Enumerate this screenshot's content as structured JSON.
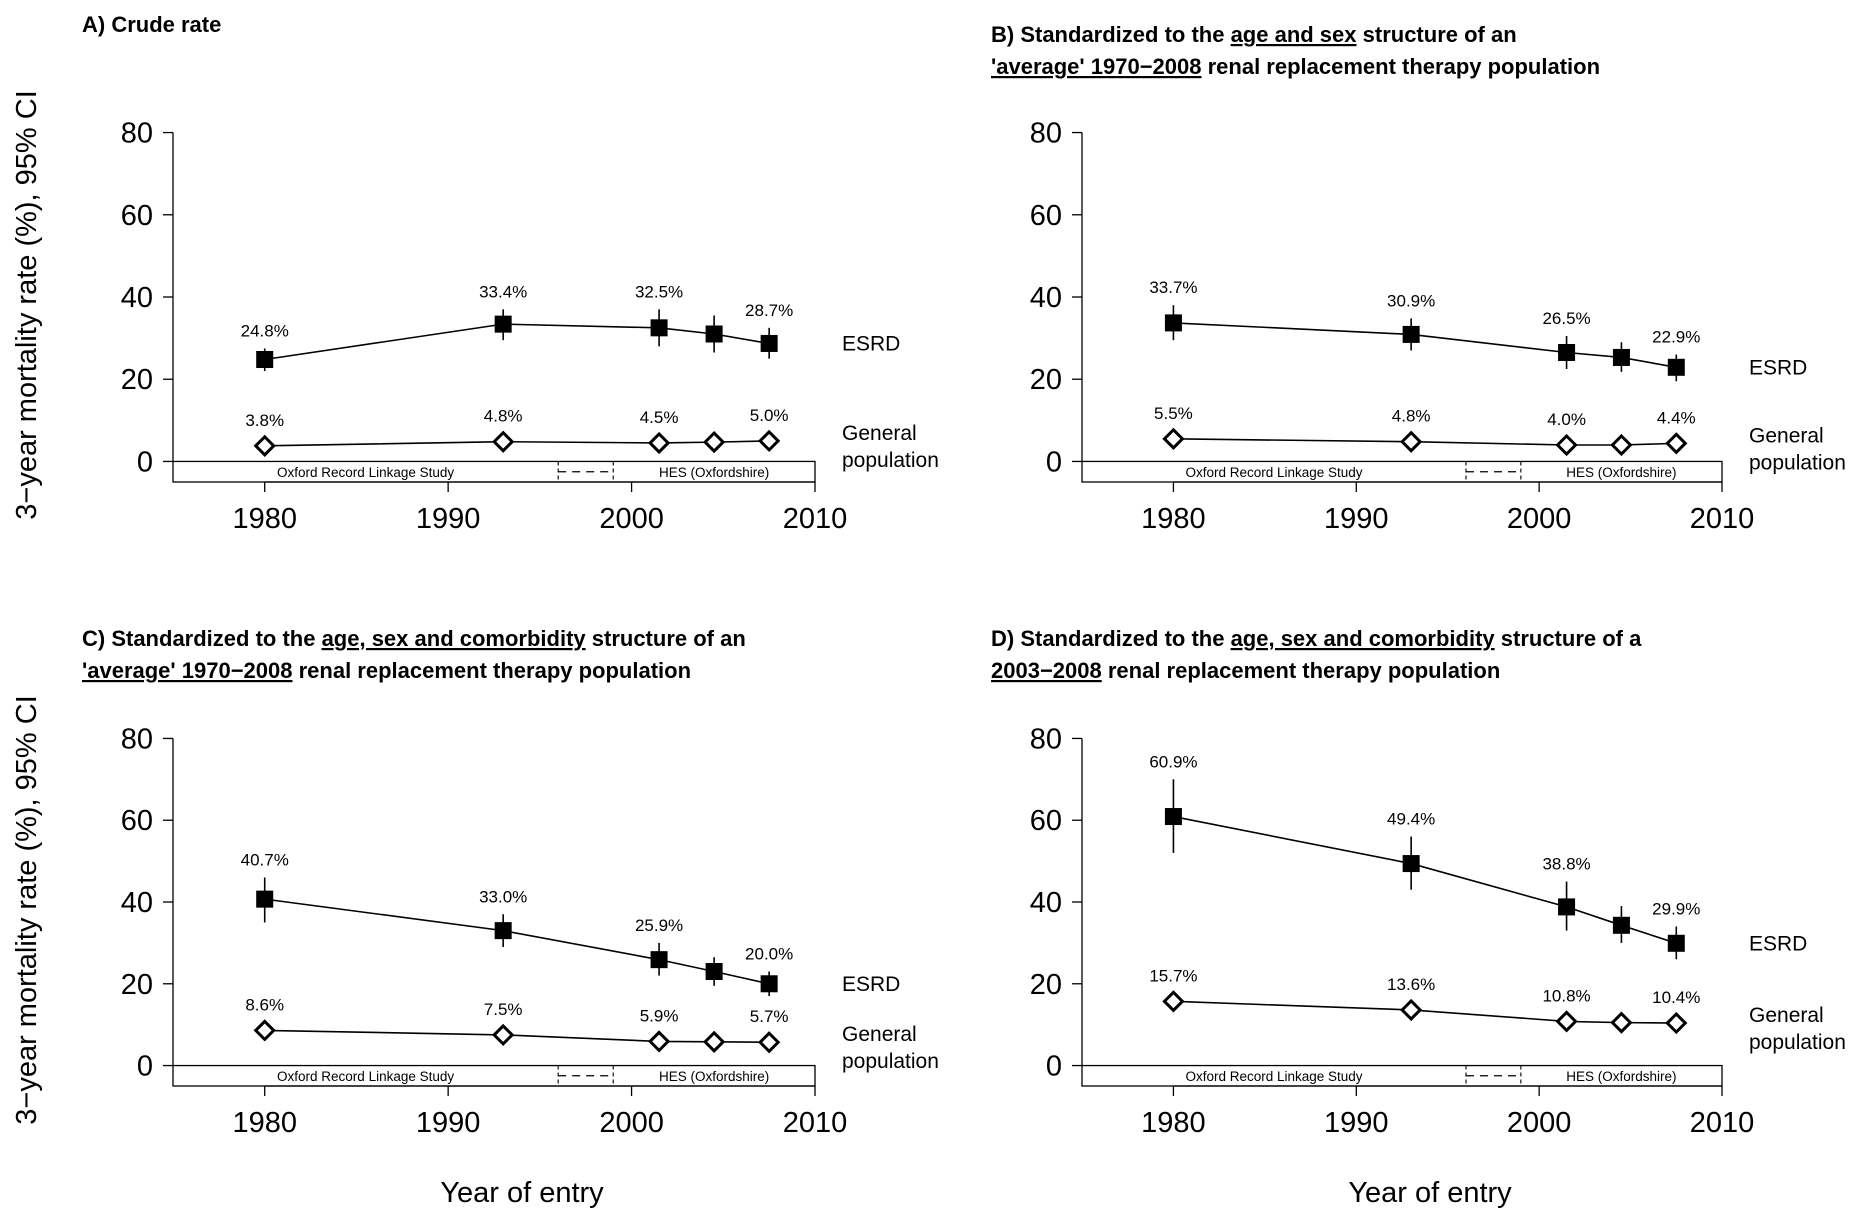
{
  "chart_data": [
    {
      "type": "line",
      "title": "A) Crude rate",
      "title_lines": [
        [
          {
            "t": "A) Crude rate",
            "u": false
          }
        ]
      ],
      "ylabel": "3−year mortality rate (%), 95% CI",
      "xlabel": "",
      "x_ticks": [
        "1980",
        "1990",
        "2000",
        "2010"
      ],
      "y_ticks": [
        "0",
        "20",
        "40",
        "60",
        "80"
      ],
      "xlim": [
        1975,
        2010
      ],
      "ylim": [
        -5,
        85
      ],
      "series": [
        {
          "name": "ESRD",
          "marker": "square",
          "x": [
            1980,
            1993,
            2001.5,
            2004.5,
            2007.5
          ],
          "y": [
            24.8,
            33.4,
            32.5,
            31.0,
            28.7
          ],
          "lo": [
            22.0,
            29.5,
            28.0,
            26.5,
            25.0
          ],
          "hi": [
            27.5,
            37.0,
            37.0,
            35.5,
            32.5
          ],
          "labels": [
            "24.8%",
            "33.4%",
            "32.5%",
            "",
            "28.7%"
          ]
        },
        {
          "name": "General population",
          "marker": "diamond",
          "x": [
            1980,
            1993,
            2001.5,
            2004.5,
            2007.5
          ],
          "y": [
            3.8,
            4.8,
            4.5,
            4.7,
            5.0
          ],
          "lo": [
            3.0,
            4.0,
            3.7,
            3.9,
            4.2
          ],
          "hi": [
            4.6,
            5.6,
            5.3,
            5.5,
            5.8
          ],
          "labels": [
            "3.8%",
            "4.8%",
            "4.5%",
            "",
            "5.0%"
          ]
        }
      ],
      "source_bands": [
        "Oxford Record Linkage Study",
        "HES (Oxfordshire)"
      ]
    },
    {
      "type": "line",
      "title": "B) Standardized to the age and sex structure of an 'average' 1970−2008 renal replacement therapy population",
      "title_lines": [
        [
          {
            "t": "B) Standardized to the ",
            "u": false
          },
          {
            "t": "age and sex",
            "u": true
          },
          {
            "t": " structure of an",
            "u": false
          }
        ],
        [
          {
            "t": "'average' 1970−2008",
            "u": true
          },
          {
            "t": " renal replacement therapy population",
            "u": false
          }
        ]
      ],
      "ylabel": "",
      "xlabel": "",
      "x_ticks": [
        "1980",
        "1990",
        "2000",
        "2010"
      ],
      "y_ticks": [
        "0",
        "20",
        "40",
        "60",
        "80"
      ],
      "xlim": [
        1975,
        2010
      ],
      "ylim": [
        -5,
        85
      ],
      "series": [
        {
          "name": "ESRD",
          "marker": "square",
          "x": [
            1980,
            1993,
            2001.5,
            2004.5,
            2007.5
          ],
          "y": [
            33.7,
            30.9,
            26.5,
            25.3,
            22.9
          ],
          "lo": [
            29.5,
            27.0,
            22.5,
            21.8,
            19.5
          ],
          "hi": [
            38.0,
            34.8,
            30.5,
            29.0,
            26.0
          ],
          "labels": [
            "33.7%",
            "30.9%",
            "26.5%",
            "",
            "22.9%"
          ]
        },
        {
          "name": "General population",
          "marker": "diamond",
          "x": [
            1980,
            1993,
            2001.5,
            2004.5,
            2007.5
          ],
          "y": [
            5.5,
            4.8,
            4.0,
            4.0,
            4.4
          ],
          "lo": [
            4.7,
            4.0,
            3.2,
            3.2,
            3.6
          ],
          "hi": [
            6.3,
            5.6,
            4.8,
            4.8,
            5.2
          ],
          "labels": [
            "5.5%",
            "4.8%",
            "4.0%",
            "",
            "4.4%"
          ]
        }
      ],
      "source_bands": [
        "Oxford Record Linkage Study",
        "HES (Oxfordshire)"
      ]
    },
    {
      "type": "line",
      "title": "C) Standardized to the age, sex and comorbidity structure of an 'average' 1970−2008 renal replacement therapy population",
      "title_lines": [
        [
          {
            "t": "C) Standardized to the ",
            "u": false
          },
          {
            "t": "age, sex and comorbidity",
            "u": true
          },
          {
            "t": " structure of an",
            "u": false
          }
        ],
        [
          {
            "t": "'average' 1970−2008",
            "u": true
          },
          {
            "t": " renal replacement therapy population",
            "u": false
          }
        ]
      ],
      "ylabel": "3−year mortality rate (%), 95% CI",
      "xlabel": "Year of entry",
      "x_ticks": [
        "1980",
        "1990",
        "2000",
        "2010"
      ],
      "y_ticks": [
        "0",
        "20",
        "40",
        "60",
        "80"
      ],
      "xlim": [
        1975,
        2010
      ],
      "ylim": [
        -5,
        85
      ],
      "series": [
        {
          "name": "ESRD",
          "marker": "square",
          "x": [
            1980,
            1993,
            2001.5,
            2004.5,
            2007.5
          ],
          "y": [
            40.7,
            33.0,
            25.9,
            23.0,
            20.0
          ],
          "lo": [
            35.0,
            29.0,
            22.0,
            19.5,
            17.0
          ],
          "hi": [
            46.0,
            37.0,
            30.0,
            26.5,
            23.0
          ],
          "labels": [
            "40.7%",
            "33.0%",
            "25.9%",
            "",
            "20.0%"
          ]
        },
        {
          "name": "General population",
          "marker": "diamond",
          "x": [
            1980,
            1993,
            2001.5,
            2004.5,
            2007.5
          ],
          "y": [
            8.6,
            7.5,
            5.9,
            5.8,
            5.7
          ],
          "lo": [
            7.8,
            6.7,
            5.1,
            5.0,
            4.9
          ],
          "hi": [
            9.4,
            8.3,
            6.7,
            6.6,
            6.5
          ],
          "labels": [
            "8.6%",
            "7.5%",
            "5.9%",
            "",
            "5.7%"
          ]
        }
      ],
      "source_bands": [
        "Oxford Record Linkage Study",
        "HES (Oxfordshire)"
      ]
    },
    {
      "type": "line",
      "title": "D) Standardized to the age, sex and comorbidity structure of a 2003−2008 renal replacement therapy population",
      "title_lines": [
        [
          {
            "t": "D) Standardized to the ",
            "u": false
          },
          {
            "t": "age, sex and comorbidity",
            "u": true
          },
          {
            "t": " structure of a",
            "u": false
          }
        ],
        [
          {
            "t": "2003−2008",
            "u": true
          },
          {
            "t": " renal replacement therapy population",
            "u": false
          }
        ]
      ],
      "ylabel": "",
      "xlabel": "Year of entry",
      "x_ticks": [
        "1980",
        "1990",
        "2000",
        "2010"
      ],
      "y_ticks": [
        "0",
        "20",
        "40",
        "60",
        "80"
      ],
      "xlim": [
        1975,
        2010
      ],
      "ylim": [
        -5,
        85
      ],
      "series": [
        {
          "name": "ESRD",
          "marker": "square",
          "x": [
            1980,
            1993,
            2001.5,
            2004.5,
            2007.5
          ],
          "y": [
            60.9,
            49.4,
            38.8,
            34.3,
            29.9
          ],
          "lo": [
            52.0,
            43.0,
            33.0,
            30.0,
            26.0
          ],
          "hi": [
            70.0,
            56.0,
            45.0,
            39.0,
            34.0
          ],
          "labels": [
            "60.9%",
            "49.4%",
            "38.8%",
            "",
            "29.9%"
          ]
        },
        {
          "name": "General population",
          "marker": "diamond",
          "x": [
            1980,
            1993,
            2001.5,
            2004.5,
            2007.5
          ],
          "y": [
            15.7,
            13.6,
            10.8,
            10.5,
            10.4
          ],
          "lo": [
            14.9,
            12.8,
            10.0,
            9.7,
            9.6
          ],
          "hi": [
            16.5,
            14.4,
            11.6,
            11.3,
            11.2
          ],
          "labels": [
            "15.7%",
            "13.6%",
            "10.8%",
            "",
            "10.4%"
          ]
        }
      ],
      "source_bands": [
        "Oxford Record Linkage Study",
        "HES (Oxfordshire)"
      ]
    }
  ],
  "colors": {
    "ink": "#000000",
    "background": "#ffffff"
  }
}
